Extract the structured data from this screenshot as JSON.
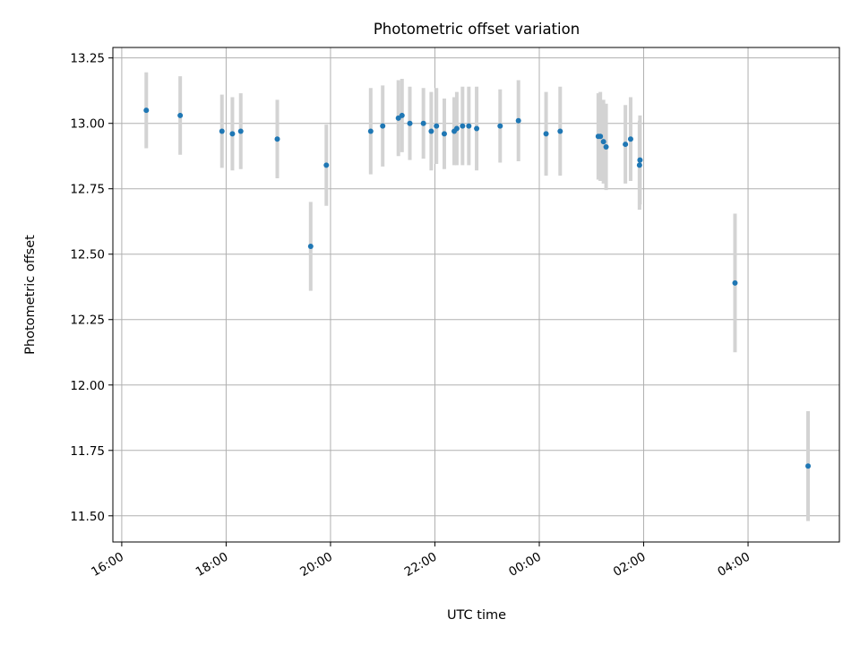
{
  "chart_data": {
    "type": "scatter",
    "title": "Photometric offset variation",
    "xlabel": "UTC time",
    "ylabel": "Photometric offset",
    "x_unit": "hours",
    "xlim": [
      15.83,
      29.75
    ],
    "ylim": [
      11.4,
      13.29
    ],
    "x_ticks": [
      {
        "value": 16,
        "label": "16:00"
      },
      {
        "value": 18,
        "label": "18:00"
      },
      {
        "value": 20,
        "label": "20:00"
      },
      {
        "value": 22,
        "label": "22:00"
      },
      {
        "value": 24,
        "label": "00:00"
      },
      {
        "value": 26,
        "label": "02:00"
      },
      {
        "value": 28,
        "label": "04:00"
      }
    ],
    "y_ticks": [
      {
        "value": 11.5,
        "label": "11.50"
      },
      {
        "value": 11.75,
        "label": "11.75"
      },
      {
        "value": 12.0,
        "label": "12.00"
      },
      {
        "value": 12.25,
        "label": "12.25"
      },
      {
        "value": 12.5,
        "label": "12.50"
      },
      {
        "value": 12.75,
        "label": "12.75"
      },
      {
        "value": 13.0,
        "label": "13.00"
      },
      {
        "value": 13.25,
        "label": "13.25"
      }
    ],
    "grid": true,
    "colors": {
      "point": "#1f77b4",
      "errorbar": "#d3d3d3",
      "grid": "#b0b0b0"
    },
    "points": [
      {
        "x": 16.47,
        "y": 13.05,
        "err": 0.145
      },
      {
        "x": 17.12,
        "y": 13.03,
        "err": 0.15
      },
      {
        "x": 17.92,
        "y": 12.97,
        "err": 0.14
      },
      {
        "x": 18.12,
        "y": 12.96,
        "err": 0.14
      },
      {
        "x": 18.28,
        "y": 12.97,
        "err": 0.145
      },
      {
        "x": 18.98,
        "y": 12.94,
        "err": 0.15
      },
      {
        "x": 19.62,
        "y": 12.53,
        "err": 0.17
      },
      {
        "x": 19.92,
        "y": 12.84,
        "err": 0.155
      },
      {
        "x": 20.77,
        "y": 12.97,
        "err": 0.165
      },
      {
        "x": 21.0,
        "y": 12.99,
        "err": 0.155
      },
      {
        "x": 21.3,
        "y": 13.02,
        "err": 0.145
      },
      {
        "x": 21.37,
        "y": 13.03,
        "err": 0.14
      },
      {
        "x": 21.52,
        "y": 13.0,
        "err": 0.14
      },
      {
        "x": 21.78,
        "y": 13.0,
        "err": 0.135
      },
      {
        "x": 21.93,
        "y": 12.97,
        "err": 0.15
      },
      {
        "x": 22.03,
        "y": 12.99,
        "err": 0.145
      },
      {
        "x": 22.18,
        "y": 12.96,
        "err": 0.135
      },
      {
        "x": 22.37,
        "y": 12.97,
        "err": 0.13
      },
      {
        "x": 22.42,
        "y": 12.98,
        "err": 0.14
      },
      {
        "x": 22.53,
        "y": 12.99,
        "err": 0.15
      },
      {
        "x": 22.65,
        "y": 12.99,
        "err": 0.15
      },
      {
        "x": 22.8,
        "y": 12.98,
        "err": 0.16
      },
      {
        "x": 23.25,
        "y": 12.99,
        "err": 0.14
      },
      {
        "x": 23.6,
        "y": 13.01,
        "err": 0.155
      },
      {
        "x": 24.13,
        "y": 12.96,
        "err": 0.16
      },
      {
        "x": 24.4,
        "y": 12.97,
        "err": 0.17
      },
      {
        "x": 25.13,
        "y": 12.95,
        "err": 0.165
      },
      {
        "x": 25.17,
        "y": 12.95,
        "err": 0.17
      },
      {
        "x": 25.23,
        "y": 12.93,
        "err": 0.16
      },
      {
        "x": 25.28,
        "y": 12.91,
        "err": 0.165
      },
      {
        "x": 25.65,
        "y": 12.92,
        "err": 0.15
      },
      {
        "x": 25.75,
        "y": 12.94,
        "err": 0.16
      },
      {
        "x": 25.92,
        "y": 12.84,
        "err": 0.17
      },
      {
        "x": 25.93,
        "y": 12.86,
        "err": 0.17
      },
      {
        "x": 27.75,
        "y": 12.39,
        "err": 0.265
      },
      {
        "x": 29.15,
        "y": 11.69,
        "err": 0.21
      }
    ]
  }
}
